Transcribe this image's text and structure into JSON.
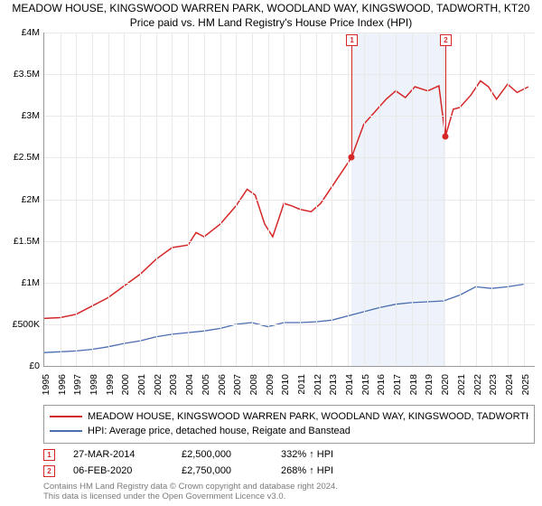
{
  "title": {
    "line1": "MEADOW HOUSE, KINGSWOOD WARREN PARK, WOODLAND WAY, KINGSWOOD, TADWORTH, KT20",
    "line2": "Price paid vs. HM Land Registry's House Price Index (HPI)"
  },
  "chart": {
    "type": "line",
    "background_color": "#ffffff",
    "grid_color": "#e9e9e9",
    "axis_color": "#999999",
    "ylim": [
      0,
      4.0
    ],
    "yticks": [
      {
        "v": 0,
        "label": "£0"
      },
      {
        "v": 0.5,
        "label": "£500K"
      },
      {
        "v": 1.0,
        "label": "£1M"
      },
      {
        "v": 1.5,
        "label": "£1.5M"
      },
      {
        "v": 2.0,
        "label": "£2M"
      },
      {
        "v": 2.5,
        "label": "£2.5M"
      },
      {
        "v": 3.0,
        "label": "£3M"
      },
      {
        "v": 3.5,
        "label": "£3.5M"
      },
      {
        "v": 4.0,
        "label": "£4M"
      }
    ],
    "xlim": [
      1995,
      2025.7
    ],
    "xticks": [
      1995,
      1996,
      1997,
      1998,
      1999,
      2000,
      2001,
      2002,
      2003,
      2004,
      2005,
      2006,
      2007,
      2008,
      2009,
      2010,
      2011,
      2012,
      2013,
      2014,
      2015,
      2016,
      2017,
      2018,
      2019,
      2020,
      2021,
      2022,
      2023,
      2024,
      2025
    ],
    "shaded_band": {
      "from": 2014.23,
      "to": 2020.1,
      "color": "#eef3fb"
    },
    "series": [
      {
        "id": "house",
        "name": "MEADOW HOUSE, KINGSWOOD WARREN PARK, WOODLAND WAY, KINGSWOOD, TADWORTH",
        "color": "#d62728",
        "width": 1.5,
        "points": [
          [
            1995,
            0.57
          ],
          [
            1996,
            0.58
          ],
          [
            1997,
            0.62
          ],
          [
            1998,
            0.72
          ],
          [
            1999,
            0.82
          ],
          [
            2000,
            0.96
          ],
          [
            2001,
            1.1
          ],
          [
            2002,
            1.28
          ],
          [
            2003,
            1.42
          ],
          [
            2004,
            1.45
          ],
          [
            2004.5,
            1.6
          ],
          [
            2005,
            1.55
          ],
          [
            2006,
            1.7
          ],
          [
            2007,
            1.92
          ],
          [
            2007.7,
            2.12
          ],
          [
            2008.2,
            2.05
          ],
          [
            2008.8,
            1.7
          ],
          [
            2009.3,
            1.55
          ],
          [
            2010,
            1.95
          ],
          [
            2010.5,
            1.92
          ],
          [
            2011,
            1.88
          ],
          [
            2011.7,
            1.85
          ],
          [
            2012.3,
            1.95
          ],
          [
            2013,
            2.15
          ],
          [
            2013.7,
            2.35
          ],
          [
            2014.23,
            2.5
          ],
          [
            2015,
            2.9
          ],
          [
            2015.7,
            3.05
          ],
          [
            2016.4,
            3.2
          ],
          [
            2017,
            3.3
          ],
          [
            2017.6,
            3.22
          ],
          [
            2018.2,
            3.35
          ],
          [
            2019,
            3.3
          ],
          [
            2019.7,
            3.36
          ],
          [
            2020.1,
            2.75
          ],
          [
            2020.6,
            3.08
          ],
          [
            2021,
            3.1
          ],
          [
            2021.7,
            3.25
          ],
          [
            2022.3,
            3.42
          ],
          [
            2022.8,
            3.35
          ],
          [
            2023.3,
            3.2
          ],
          [
            2024,
            3.38
          ],
          [
            2024.6,
            3.28
          ],
          [
            2025.3,
            3.35
          ]
        ]
      },
      {
        "id": "hpi",
        "name": "HPI: Average price, detached house, Reigate and Banstead",
        "color": "#4a6db0",
        "width": 1.3,
        "points": [
          [
            1995,
            0.16
          ],
          [
            1996,
            0.17
          ],
          [
            1997,
            0.18
          ],
          [
            1998,
            0.2
          ],
          [
            1999,
            0.23
          ],
          [
            2000,
            0.27
          ],
          [
            2001,
            0.3
          ],
          [
            2002,
            0.35
          ],
          [
            2003,
            0.38
          ],
          [
            2004,
            0.4
          ],
          [
            2005,
            0.42
          ],
          [
            2006,
            0.45
          ],
          [
            2007,
            0.5
          ],
          [
            2008,
            0.52
          ],
          [
            2009,
            0.47
          ],
          [
            2010,
            0.52
          ],
          [
            2011,
            0.52
          ],
          [
            2012,
            0.53
          ],
          [
            2013,
            0.55
          ],
          [
            2014,
            0.6
          ],
          [
            2015,
            0.65
          ],
          [
            2016,
            0.7
          ],
          [
            2017,
            0.74
          ],
          [
            2018,
            0.76
          ],
          [
            2019,
            0.77
          ],
          [
            2020,
            0.78
          ],
          [
            2021,
            0.85
          ],
          [
            2022,
            0.95
          ],
          [
            2023,
            0.93
          ],
          [
            2024,
            0.95
          ],
          [
            2025,
            0.98
          ]
        ]
      }
    ],
    "markers": [
      {
        "num": "1",
        "x": 2014.23,
        "y": 2.5,
        "color": "#d62728"
      },
      {
        "num": "2",
        "x": 2020.1,
        "y": 2.75,
        "color": "#d62728"
      }
    ]
  },
  "legend": [
    {
      "color": "#d62728",
      "label": "MEADOW HOUSE, KINGSWOOD WARREN PARK, WOODLAND WAY, KINGSWOOD, TADWORTH"
    },
    {
      "color": "#4a6db0",
      "label": "HPI: Average price, detached house, Reigate and Banstead"
    }
  ],
  "transactions": [
    {
      "num": "1",
      "date": "27-MAR-2014",
      "price": "£2,500,000",
      "pct": "332% ↑ HPI"
    },
    {
      "num": "2",
      "date": "06-FEB-2020",
      "price": "£2,750,000",
      "pct": "268% ↑ HPI"
    }
  ],
  "footer": {
    "line1": "Contains HM Land Registry data © Crown copyright and database right 2024.",
    "line2": "This data is licensed under the Open Government Licence v3.0."
  }
}
